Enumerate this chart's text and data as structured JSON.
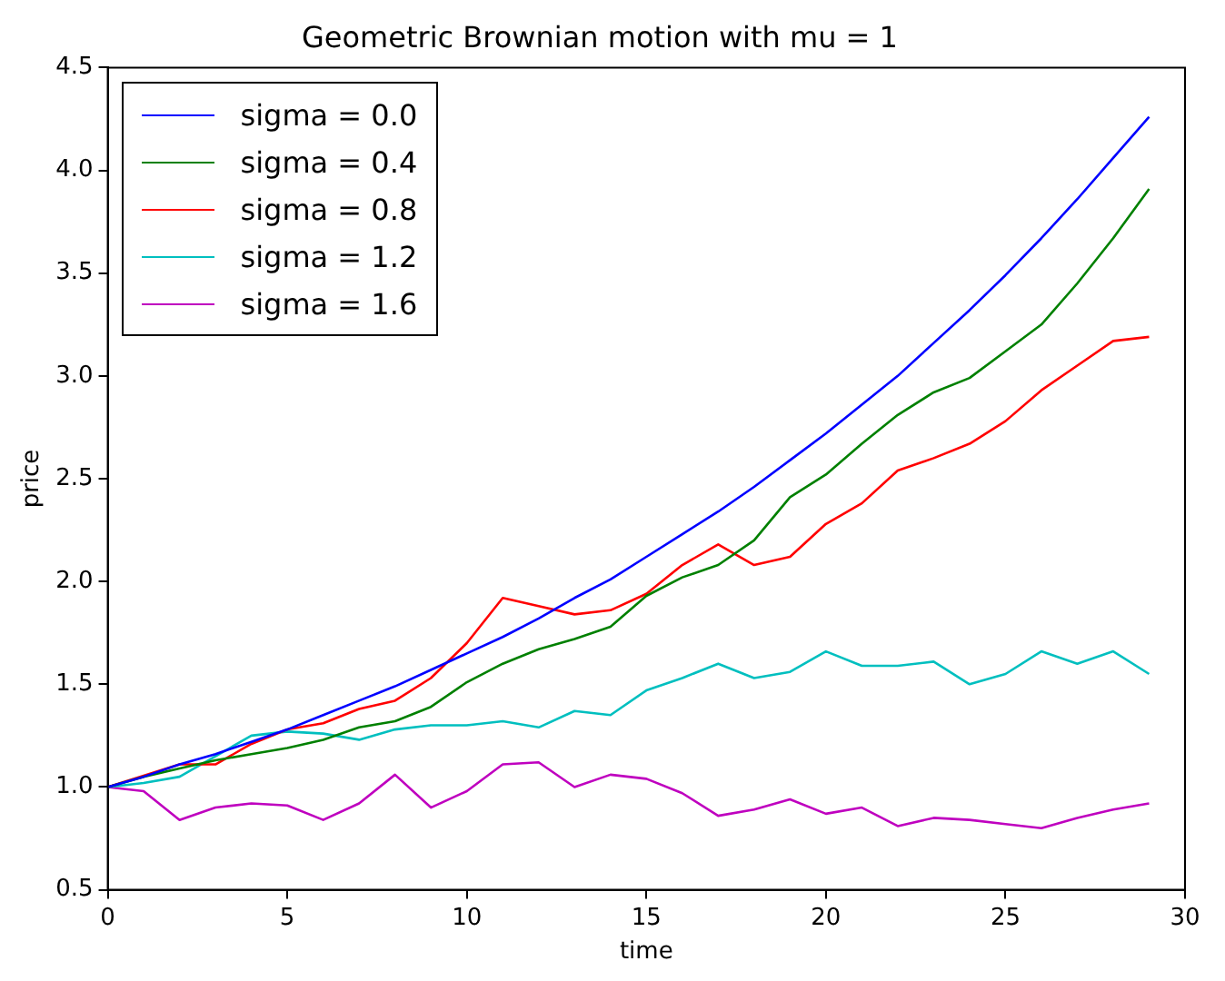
{
  "chart_data": {
    "type": "line",
    "title": "Geometric Brownian motion with mu = 1",
    "xlabel": "time",
    "ylabel": "price",
    "x": [
      0,
      1,
      2,
      3,
      4,
      5,
      6,
      7,
      8,
      9,
      10,
      11,
      12,
      13,
      14,
      15,
      16,
      17,
      18,
      19,
      20,
      21,
      22,
      23,
      24,
      25,
      26,
      27,
      28,
      29
    ],
    "series": [
      {
        "name": "sigma = 0.0",
        "color": "#0000ff",
        "values": [
          1.0,
          1.05,
          1.11,
          1.16,
          1.22,
          1.28,
          1.35,
          1.42,
          1.49,
          1.57,
          1.65,
          1.73,
          1.82,
          1.92,
          2.01,
          2.12,
          2.23,
          2.34,
          2.46,
          2.59,
          2.72,
          2.86,
          3.0,
          3.16,
          3.32,
          3.49,
          3.67,
          3.86,
          4.06,
          4.26
        ]
      },
      {
        "name": "sigma = 0.4",
        "color": "#008000",
        "values": [
          1.0,
          1.05,
          1.09,
          1.13,
          1.16,
          1.19,
          1.23,
          1.29,
          1.32,
          1.39,
          1.51,
          1.6,
          1.67,
          1.72,
          1.78,
          1.93,
          2.02,
          2.08,
          2.2,
          2.41,
          2.52,
          2.67,
          2.81,
          2.92,
          2.99,
          3.12,
          3.25,
          3.45,
          3.67,
          3.91
        ]
      },
      {
        "name": "sigma = 0.8",
        "color": "#ff0000",
        "values": [
          1.0,
          null,
          1.11,
          1.11,
          1.21,
          1.28,
          1.31,
          1.38,
          1.42,
          1.53,
          1.7,
          1.92,
          1.88,
          1.84,
          1.86,
          1.94,
          2.08,
          2.18,
          2.08,
          2.12,
          2.28,
          2.38,
          2.54,
          2.6,
          2.67,
          2.78,
          2.93,
          3.05,
          3.17,
          3.19
        ]
      },
      {
        "name": "sigma = 1.2",
        "color": "#00bfbf",
        "values": [
          1.0,
          1.02,
          1.05,
          1.15,
          1.25,
          1.27,
          1.26,
          1.23,
          1.28,
          1.3,
          1.3,
          1.32,
          1.29,
          1.37,
          1.35,
          1.47,
          1.53,
          1.6,
          1.53,
          1.56,
          1.66,
          1.59,
          1.59,
          1.61,
          1.5,
          1.55,
          1.66,
          1.6,
          1.66,
          1.55
        ]
      },
      {
        "name": "sigma = 1.6",
        "color": "#bf00bf",
        "values": [
          1.0,
          0.98,
          0.84,
          0.9,
          0.92,
          0.91,
          0.84,
          0.92,
          1.06,
          0.9,
          0.98,
          1.11,
          1.12,
          1.0,
          1.06,
          1.04,
          0.97,
          0.86,
          0.89,
          0.94,
          0.87,
          0.9,
          0.81,
          0.85,
          0.84,
          0.82,
          0.8,
          0.85,
          0.89,
          0.92
        ]
      }
    ],
    "xlim": [
      0,
      30
    ],
    "xticks": [
      0,
      5,
      10,
      15,
      20,
      25,
      30
    ],
    "ylim": [
      0.5,
      4.5
    ],
    "yticks": [
      0.5,
      {
        "value": 1,
        "label": "1.0"
      },
      1.5,
      {
        "value": 2,
        "label": "2.0"
      },
      2.5,
      {
        "value": 3,
        "label": "3.0"
      },
      3.5,
      {
        "value": 4,
        "label": "4.0"
      },
      4.5
    ],
    "grid": false,
    "legend": "top left",
    "marker": "none",
    "line_style": "solid"
  }
}
